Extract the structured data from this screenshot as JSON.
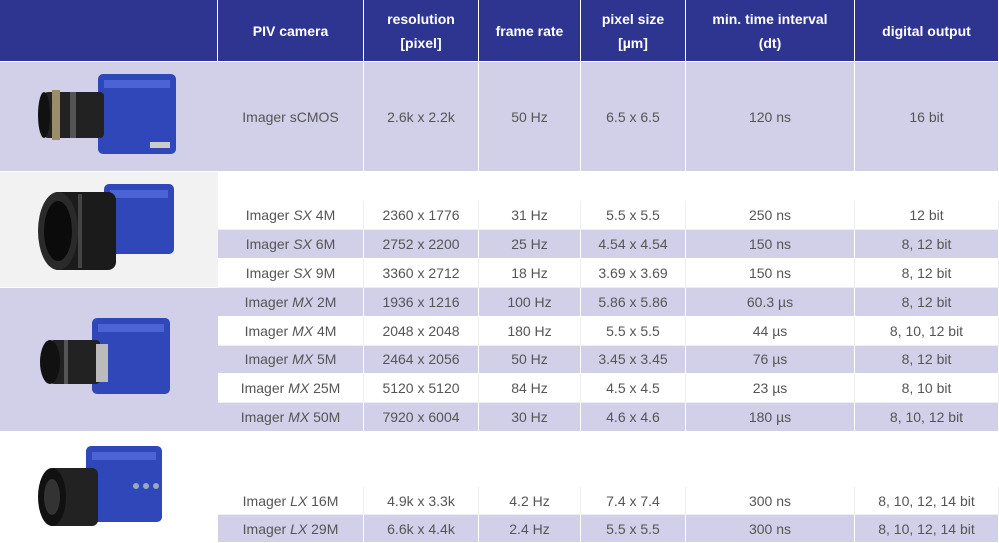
{
  "table": {
    "header": [
      [
        "PIV camera"
      ],
      [
        "resolution",
        "[pixel]"
      ],
      [
        "frame rate"
      ],
      [
        "pixel size",
        "[µm]"
      ],
      [
        "min. time interval",
        "(dt)"
      ],
      [
        "digital output"
      ]
    ],
    "groups": [
      {
        "rows": [
          {
            "camera": {
              "brand": "Imager",
              "sensor": "sCMOS"
            },
            "resolution": "2.6k x 2.2k",
            "frame_rate": "50 Hz",
            "pixel_size": "6.5 x 6.5",
            "interval": "120 ns",
            "output": "16 bit"
          }
        ]
      },
      {
        "rows": [
          {
            "camera": {
              "brand": "Imager",
              "series": "SX",
              "sensor": "4M"
            },
            "resolution": "2360 x 1776",
            "frame_rate": "31 Hz",
            "pixel_size": "5.5 x 5.5",
            "interval": "250 ns",
            "output": "12 bit"
          },
          {
            "camera": {
              "brand": "Imager",
              "series": "SX",
              "sensor": "6M"
            },
            "resolution": "2752 x 2200",
            "frame_rate": "25 Hz",
            "pixel_size": "4.54 x 4.54",
            "interval": "150 ns",
            "output": "8, 12 bit"
          },
          {
            "camera": {
              "brand": "Imager",
              "series": "SX",
              "sensor": "9M"
            },
            "resolution": "3360 x 2712",
            "frame_rate": "18 Hz",
            "pixel_size": "3.69 x 3.69",
            "interval": "150 ns",
            "output": "8, 12 bit"
          }
        ]
      },
      {
        "rows": [
          {
            "camera": {
              "brand": "Imager",
              "series": "MX",
              "sensor": "2M"
            },
            "resolution": "1936 x 1216",
            "frame_rate": "100 Hz",
            "pixel_size": "5.86 x 5.86",
            "interval": "60.3 µs",
            "output": "8, 12 bit"
          },
          {
            "camera": {
              "brand": "Imager",
              "series": "MX",
              "sensor": "4M"
            },
            "resolution": "2048 x 2048",
            "frame_rate": "180 Hz",
            "pixel_size": "5.5 x 5.5",
            "interval": "44 µs",
            "output": "8, 10, 12 bit"
          },
          {
            "camera": {
              "brand": "Imager",
              "series": "MX",
              "sensor": "5M"
            },
            "resolution": "2464 x 2056",
            "frame_rate": "50 Hz",
            "pixel_size": "3.45 x 3.45",
            "interval": "76 µs",
            "output": "8, 12 bit"
          },
          {
            "camera": {
              "brand": "Imager",
              "series": "MX",
              "sensor": "25M"
            },
            "resolution": "5120 x 5120",
            "frame_rate": "84 Hz",
            "pixel_size": "4.5 x 4.5",
            "interval": "23 µs",
            "output": "8, 10 bit"
          },
          {
            "camera": {
              "brand": "Imager",
              "series": "MX",
              "sensor": "50M"
            },
            "resolution": "7920 x 6004",
            "frame_rate": "30 Hz",
            "pixel_size": "4.6 x 4.6",
            "interval": "180 µs",
            "output": "8, 10, 12 bit"
          }
        ]
      },
      {
        "rows": [
          {
            "camera": {
              "brand": "Imager",
              "series": "LX",
              "sensor": "16M"
            },
            "resolution": "4.9k x 3.3k",
            "frame_rate": "4.2 Hz",
            "pixel_size": "7.4 x 7.4",
            "interval": "300 ns",
            "output": "8, 10, 12, 14 bit"
          },
          {
            "camera": {
              "brand": "Imager",
              "series": "LX",
              "sensor": "29M"
            },
            "resolution": "6.6k x 4.4k",
            "frame_rate": "2.4 Hz",
            "pixel_size": "5.5 x 5.5",
            "interval": "300 ns",
            "output": "8, 10, 12, 14 bit"
          }
        ]
      }
    ]
  }
}
